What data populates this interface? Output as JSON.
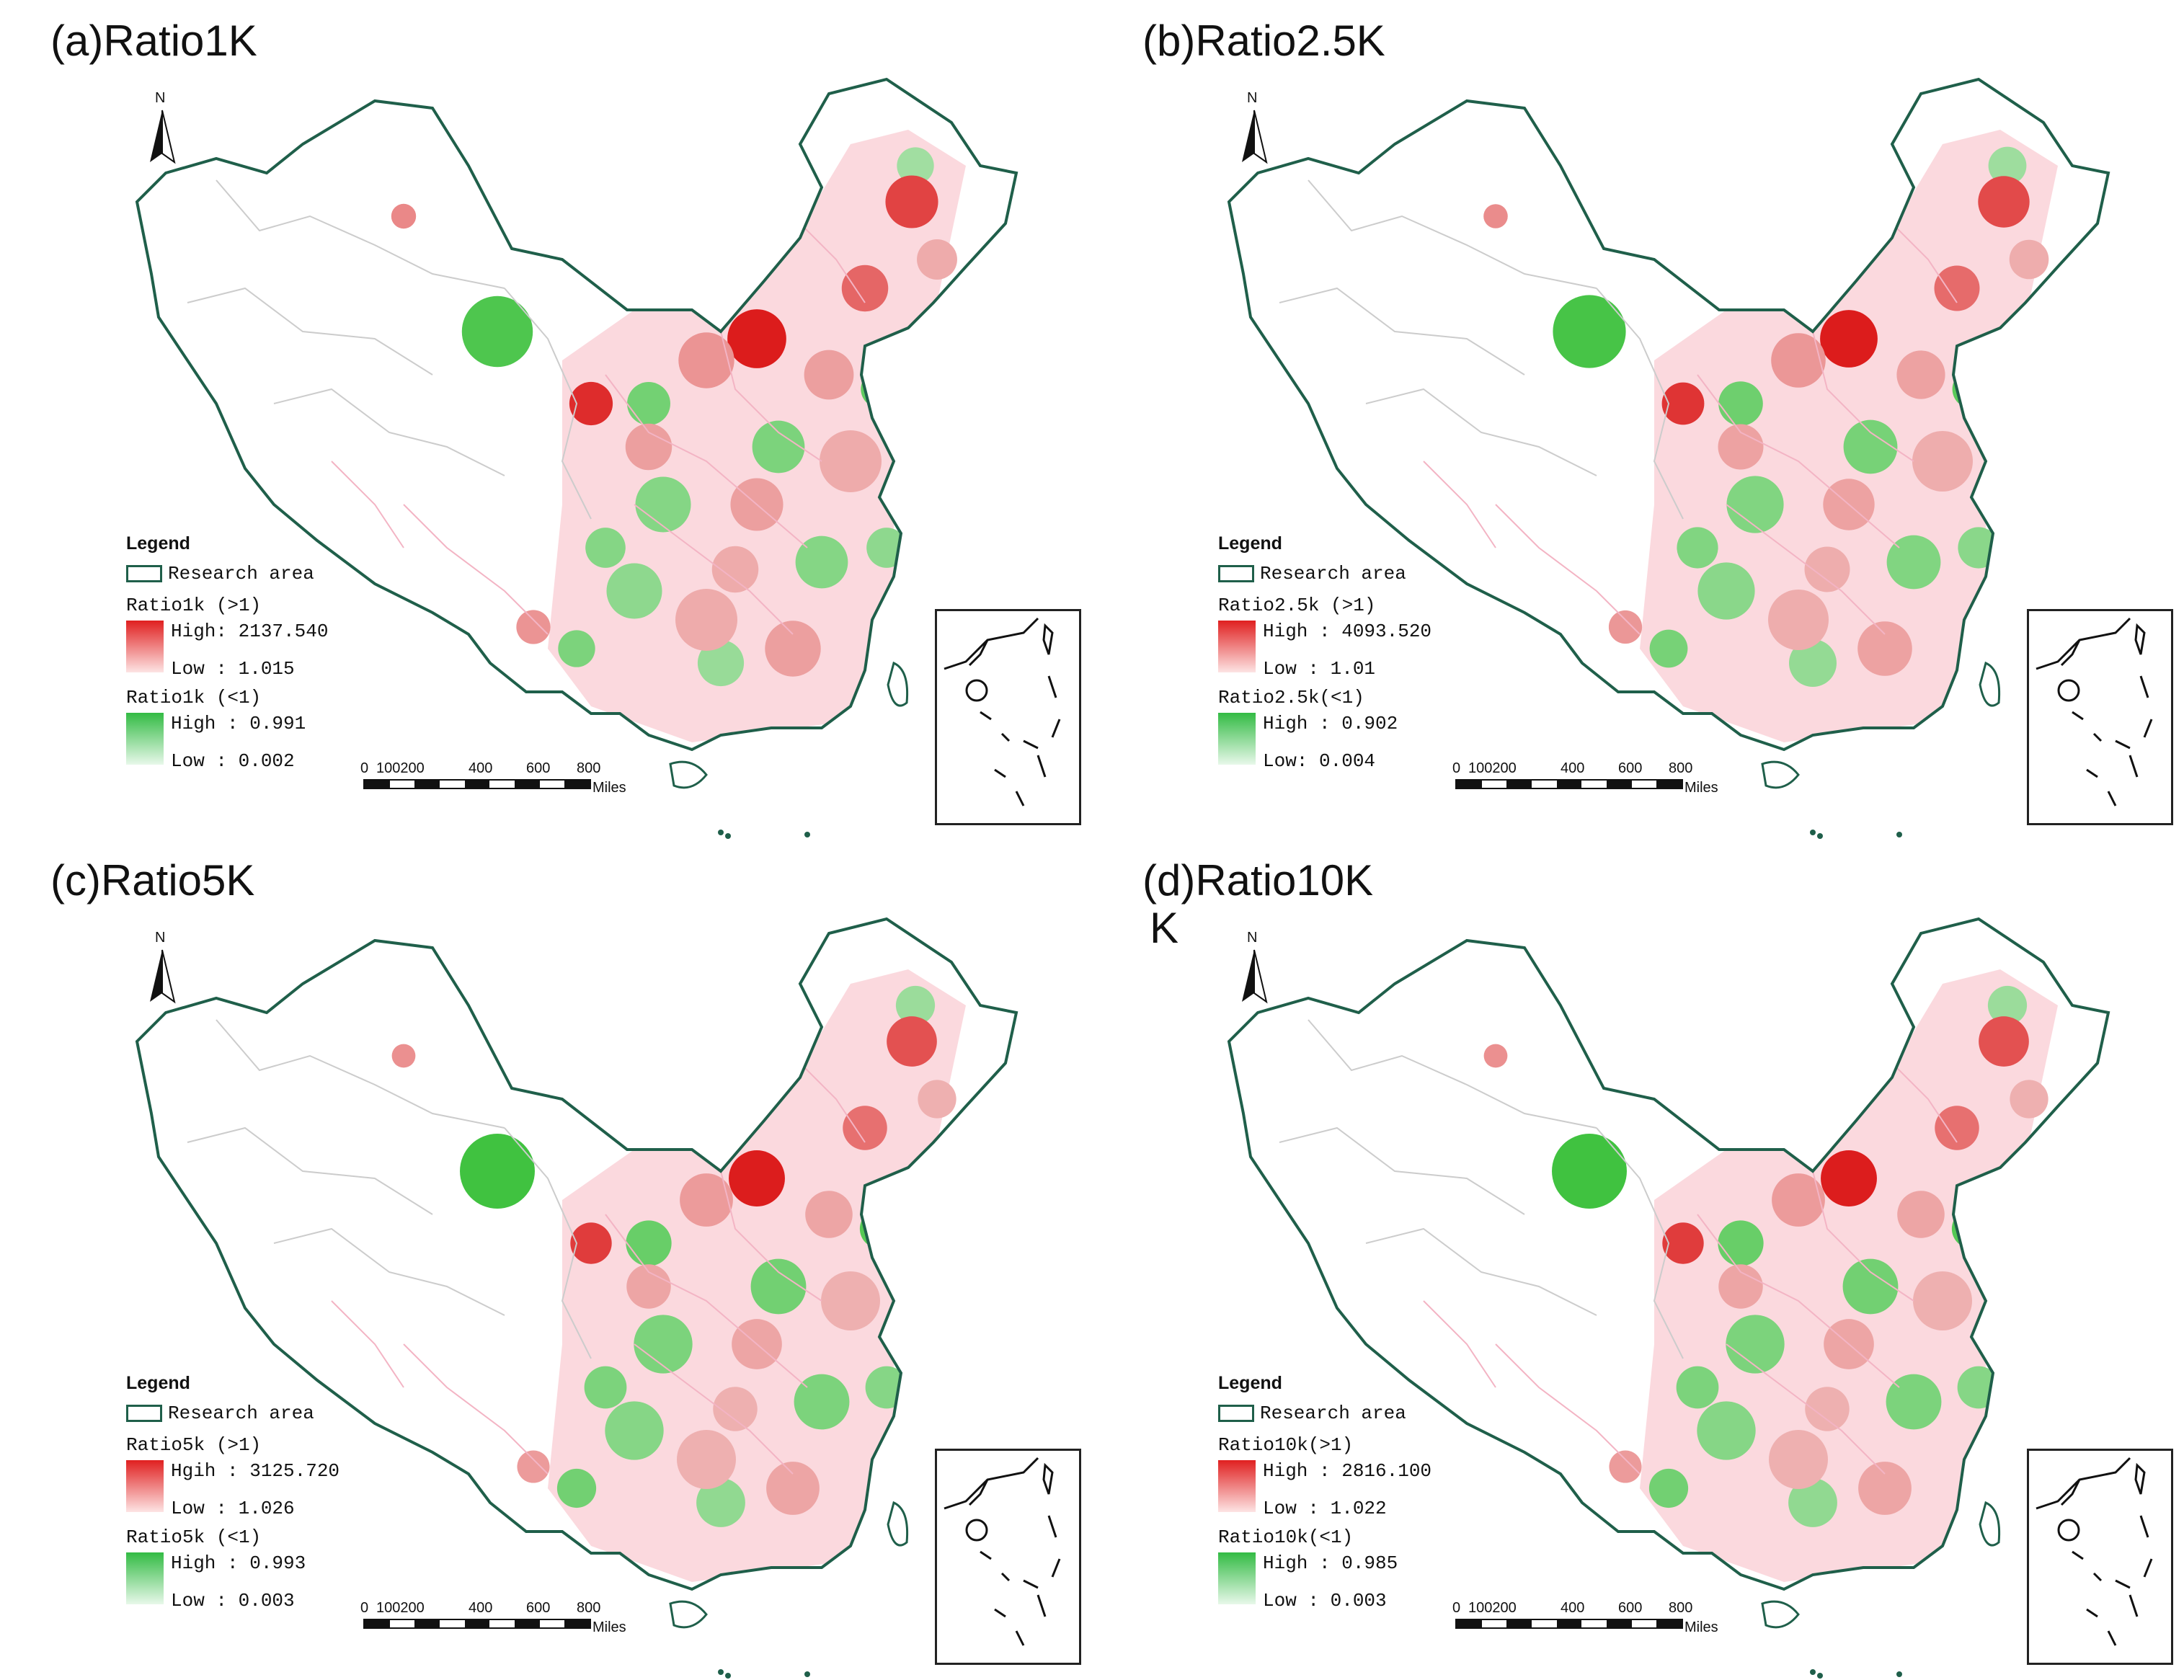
{
  "figure": {
    "colors": {
      "border": "#1f5f4a",
      "internal_boundary": "#cccccc",
      "high_ratio": "#dd1e1e",
      "low_ratio": "#30b840",
      "pink_boundary": "#f3b4c4"
    },
    "panels": [
      {
        "id": "a",
        "title": "(a)Ratio1K",
        "title_extra": "",
        "north_label": "N",
        "legend": {
          "title": "Legend",
          "area_label": "Research area",
          "high_class": "Ratio1k (>1)",
          "high_label": "High: 2137.540",
          "high_low_label": "Low : 1.015",
          "low_class": "Ratio1k (<1)",
          "low_high_label": "High : 0.991",
          "low_low_label": "Low : 0.002"
        },
        "scale": {
          "ticks": [
            "0",
            "100200",
            "400",
            "600",
            "800"
          ],
          "unit": "Miles"
        },
        "red_level": 0.55,
        "green_level": 0.45
      },
      {
        "id": "b",
        "title": "(b)Ratio2.5K",
        "title_extra": "",
        "north_label": "N",
        "legend": {
          "title": "Legend",
          "area_label": "Research area",
          "high_class": "Ratio2.5k (>1)",
          "high_label": "High : 4093.520",
          "high_low_label": "Low : 1.01",
          "low_class": "Ratio2.5k(<1)",
          "low_high_label": "High : 0.902",
          "low_low_label": "Low: 0.004"
        },
        "scale": {
          "ticks": [
            "0",
            "100200",
            "400",
            "600",
            "800"
          ],
          "unit": "Miles"
        },
        "red_level": 0.5,
        "green_level": 0.5
      },
      {
        "id": "c",
        "title": "(c)Ratio5K",
        "title_extra": "",
        "north_label": "N",
        "legend": {
          "title": "Legend",
          "area_label": "Research area",
          "high_class": "Ratio5k (>1)",
          "high_label": "Hgih : 3125.720",
          "high_low_label": "Low : 1.026",
          "low_class": "Ratio5k (<1)",
          "low_high_label": "High : 0.993",
          "low_low_label": "Low : 0.003"
        },
        "scale": {
          "ticks": [
            "0",
            "100200",
            "400",
            "600",
            "800"
          ],
          "unit": "Miles"
        },
        "red_level": 0.45,
        "green_level": 0.55
      },
      {
        "id": "d",
        "title": "(d)Ratio10K",
        "title_extra": "K",
        "north_label": "N",
        "legend": {
          "title": "Legend",
          "area_label": "Research area",
          "high_class": "Ratio10k(>1)",
          "high_label": "High : 2816.100",
          "high_low_label": "Low : 1.022",
          "low_class": "Ratio10k(<1)",
          "low_high_label": "High : 0.985",
          "low_low_label": "Low : 0.003"
        },
        "scale": {
          "ticks": [
            "0",
            "100200",
            "400",
            "600",
            "800"
          ],
          "unit": "Miles"
        },
        "red_level": 0.45,
        "green_level": 0.55
      }
    ]
  }
}
